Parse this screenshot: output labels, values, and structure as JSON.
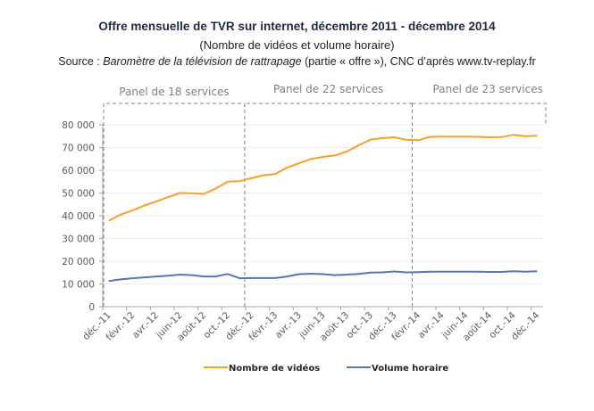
{
  "header": {
    "title": "Offre mensuelle de TVR sur internet, décembre 2011 - décembre 2014",
    "subtitle": "(Nombre de vidéos et volume horaire)",
    "source_prefix": "Source : ",
    "source_italic": "Baromètre de la télévision de rattrapage",
    "source_suffix": " (partie « offre »), CNC d’après www.tv-replay.fr"
  },
  "chart_data": {
    "type": "line",
    "title": "Offre mensuelle de TVR sur internet, décembre 2011 - décembre 2014",
    "subtitle": "(Nombre de vidéos et volume horaire)",
    "xlabel": "",
    "ylabel": "",
    "ylim": [
      0,
      80000
    ],
    "yticks": [
      0,
      10000,
      20000,
      30000,
      40000,
      50000,
      60000,
      70000,
      80000
    ],
    "ytick_labels": [
      "0",
      "10 000",
      "20 000",
      "30 000",
      "40 000",
      "50 000",
      "60 000",
      "70 000",
      "80 000"
    ],
    "grid": true,
    "legend_position": "bottom",
    "x": [
      "déc.-11",
      "janv.-12",
      "févr.-12",
      "mars-12",
      "avr.-12",
      "mai-12",
      "juin-12",
      "juil.-12",
      "août-12",
      "sept.-12",
      "oct.-12",
      "nov.-12",
      "déc.-12",
      "janv.-13",
      "févr.-13",
      "mars-13",
      "avr.-13",
      "mai-13",
      "juin-13",
      "juil.-13",
      "août-13",
      "sept.-13",
      "oct.-13",
      "nov.-13",
      "déc.-13",
      "janv.-14",
      "févr.-14",
      "mars-14",
      "avr.-14",
      "mai-14",
      "juin-14",
      "juil.-14",
      "août-14",
      "sept.-14",
      "oct.-14",
      "nov.-14",
      "déc.-14"
    ],
    "xtick_labels": [
      "déc.-11",
      "févr.-12",
      "avr.-12",
      "juin-12",
      "août-12",
      "oct.-12",
      "déc.-12",
      "févr.-13",
      "avr.-13",
      "juin-13",
      "août-13",
      "oct.-13",
      "déc.-13",
      "févr.-14",
      "avr.-14",
      "juin-14",
      "août-14",
      "oct.-14",
      "déc.-14"
    ],
    "series": [
      {
        "name": "Nombre de vidéos",
        "color": "#f5a02a",
        "values": [
          37800,
          40500,
          42300,
          44500,
          46300,
          48200,
          50000,
          49900,
          49600,
          52000,
          55000,
          55200,
          56500,
          57800,
          58400,
          61200,
          63100,
          65000,
          65900,
          66500,
          68200,
          71000,
          73500,
          74100,
          74500,
          73400,
          73200,
          74700,
          74800,
          74800,
          74800,
          74700,
          74500,
          74600,
          75600,
          75000,
          75200
        ]
      },
      {
        "name": "Volume horaire",
        "color": "#5b72b8",
        "values": [
          11300,
          12000,
          12500,
          12900,
          13300,
          13600,
          14100,
          13900,
          13300,
          13300,
          14400,
          12500,
          12600,
          12600,
          12600,
          13300,
          14300,
          14500,
          14300,
          13900,
          14100,
          14400,
          15000,
          15100,
          15500,
          15100,
          15200,
          15400,
          15400,
          15400,
          15400,
          15400,
          15300,
          15300,
          15600,
          15400,
          15600
        ]
      }
    ],
    "annotations": [
      {
        "label": "Panel de 18 services",
        "from": "déc.-11",
        "to": "nov.-12"
      },
      {
        "label": "Panel de 22 services",
        "from": "déc.-12",
        "to": "janv.-14"
      },
      {
        "label": "Panel de 23 services",
        "from": "févr.-14",
        "to": "déc.-14"
      }
    ]
  }
}
